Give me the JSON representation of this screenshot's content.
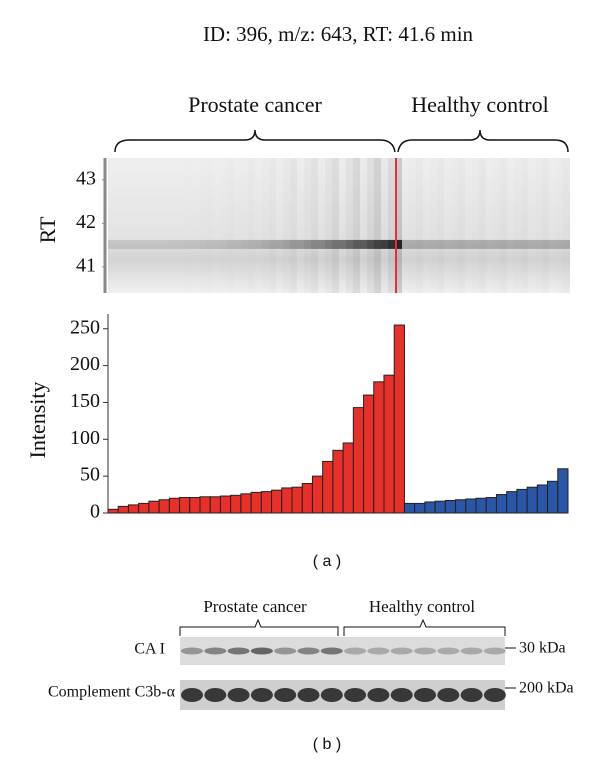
{
  "chart_data": [
    {
      "type": "heatmap",
      "title": "ID: 396, m/z: 643, RT: 41.6 min",
      "y_label": "RT",
      "groups": [
        "Prostate cancer",
        "Healthy control"
      ],
      "ylim": [
        40.4,
        43.5
      ],
      "yticks": [
        41,
        42,
        43
      ]
    },
    {
      "type": "bar",
      "y_label": "Intensity",
      "series": [
        {
          "name": "Prostate cancer",
          "color": "#e8302a",
          "values": [
            5,
            9,
            11,
            13,
            16,
            18,
            20,
            21,
            21,
            22,
            22,
            23,
            24,
            26,
            28,
            29,
            31,
            34,
            35,
            40,
            50,
            70,
            85,
            95,
            143,
            160,
            178,
            187,
            255
          ]
        },
        {
          "name": "Healthy control",
          "color": "#2a56a8",
          "values": [
            13,
            13,
            15,
            16,
            17,
            18,
            19,
            20,
            21,
            25,
            29,
            32,
            35,
            38,
            43,
            60
          ]
        }
      ],
      "ylim": [
        0,
        270
      ],
      "yticks": [
        0,
        50,
        100,
        150,
        200,
        250
      ]
    }
  ],
  "panel_a": "( a )",
  "blot": {
    "groups": [
      "Prostate cancer",
      "Healthy control"
    ],
    "rows": [
      {
        "label": "CA I",
        "marker": "30 kDa"
      },
      {
        "label": "Complement C3b-α",
        "marker": "200 kDa"
      }
    ]
  },
  "panel_b": "( b )"
}
